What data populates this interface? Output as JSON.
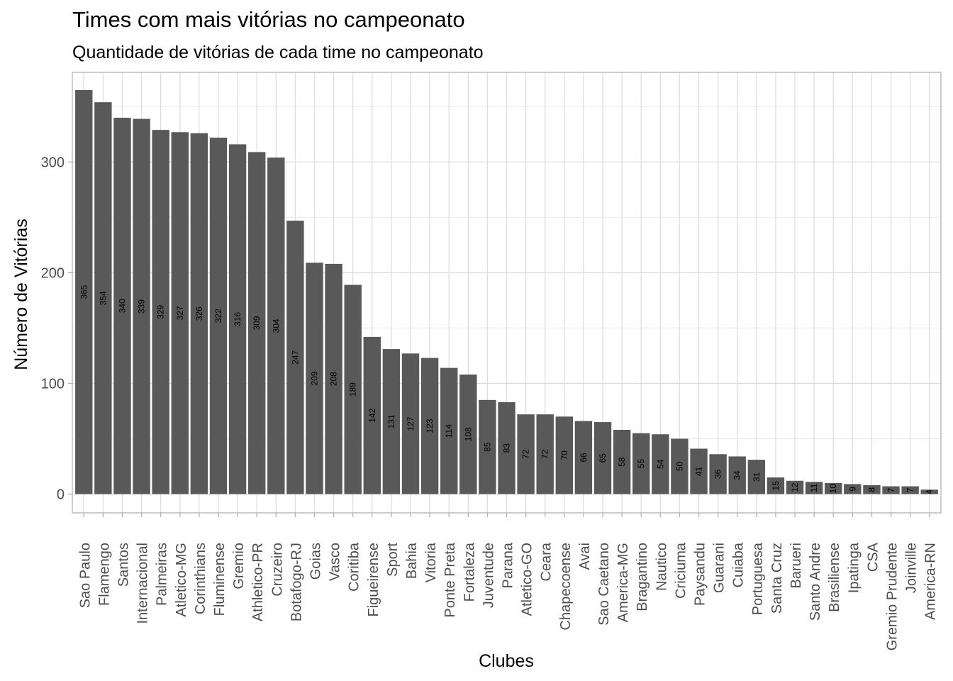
{
  "title": "Times com mais vitórias no campeonato",
  "subtitle": "Quantidade de vitórias de cada time no campeonato",
  "chart_data": {
    "type": "bar",
    "title": "Times com mais vitórias no campeonato",
    "subtitle": "Quantidade de vitórias de cada time no campeonato",
    "xlabel": "Clubes",
    "ylabel": "Número de Vitórias",
    "ylim": [
      -17,
      381
    ],
    "yticks": [
      0,
      100,
      200,
      300
    ],
    "grid": true,
    "bar_color": "#595959",
    "categories": [
      "Sao Paulo",
      "Flamengo",
      "Santos",
      "Internacional",
      "Palmeiras",
      "Atletico-MG",
      "Corinthians",
      "Fluminense",
      "Gremio",
      "Athletico-PR",
      "Cruzeiro",
      "Botafogo-RJ",
      "Goias",
      "Vasco",
      "Coritiba",
      "Figueirense",
      "Sport",
      "Bahia",
      "Vitoria",
      "Ponte Preta",
      "Fortaleza",
      "Juventude",
      "Parana",
      "Atletico-GO",
      "Ceara",
      "Chapecoense",
      "Avai",
      "Sao Caetano",
      "America-MG",
      "Bragantino",
      "Nautico",
      "Criciuma",
      "Paysandu",
      "Guarani",
      "Cuiaba",
      "Portuguesa",
      "Santa Cruz",
      "Barueri",
      "Santo Andre",
      "Brasiliense",
      "Ipatinga",
      "CSA",
      "Gremio Prudente",
      "Joinville",
      "America-RN"
    ],
    "values": [
      365,
      354,
      340,
      339,
      329,
      327,
      326,
      322,
      316,
      309,
      304,
      247,
      209,
      208,
      189,
      142,
      131,
      127,
      123,
      114,
      108,
      85,
      83,
      72,
      72,
      70,
      66,
      65,
      58,
      55,
      54,
      50,
      41,
      36,
      34,
      31,
      15,
      12,
      11,
      10,
      9,
      8,
      7,
      7,
      4
    ]
  }
}
